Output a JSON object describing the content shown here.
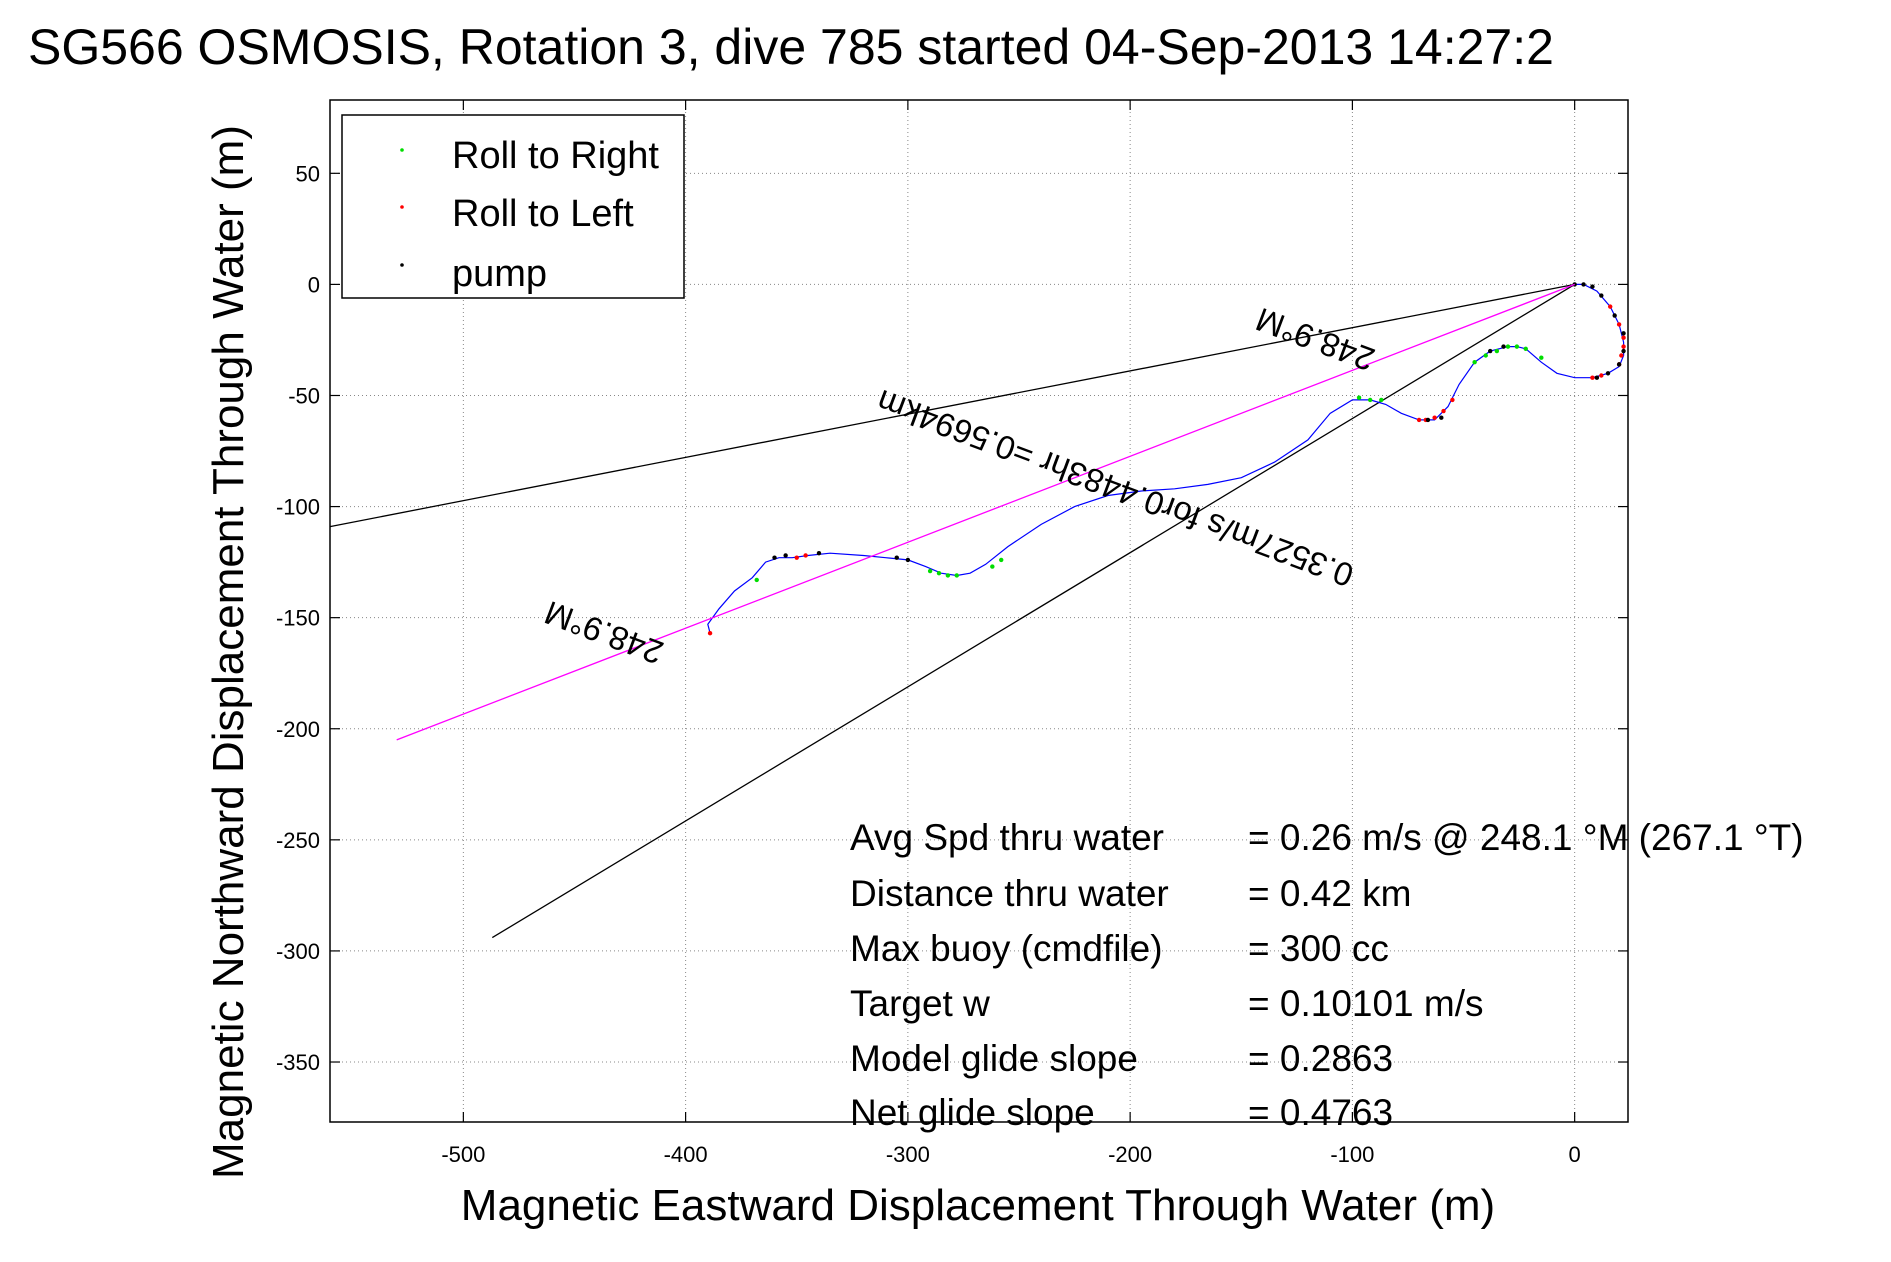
{
  "chart_data": {
    "type": "line",
    "title": "SG566 OSMOSIS, Rotation 3, dive 785 started 04-Sep-2013 14:27:2",
    "xlabel": "Magnetic Eastward Displacement Through Water (m)",
    "ylabel": "Magnetic Northward Displacement Through Water (m)",
    "xlim": [
      -560,
      24
    ],
    "ylim": [
      -377,
      83
    ],
    "x_ticks": [
      -500,
      -400,
      -300,
      -200,
      -100,
      0
    ],
    "x_tick_labels": [
      "-500",
      "-400",
      "-300",
      "-200",
      "-100",
      "0"
    ],
    "y_ticks": [
      50,
      0,
      -50,
      -100,
      -150,
      -200,
      -250,
      -300,
      -350
    ],
    "y_tick_labels": [
      "50",
      "0",
      "-50",
      "-100",
      "-150",
      "-200",
      "-250",
      "-300",
      "-350"
    ],
    "grid": true,
    "legend_position": "top-left",
    "legend": [
      {
        "label": "Roll to Right",
        "color": "#00dd00"
      },
      {
        "label": "Roll to Left",
        "color": "#ff0000"
      },
      {
        "label": "pump",
        "color": "#000000"
      }
    ],
    "series": [
      {
        "kind": "track",
        "color": "#0000ff",
        "x": [
          0,
          4,
          10,
          16,
          20,
          22,
          22,
          20,
          15,
          8,
          0,
          -8,
          -15,
          -22,
          -26,
          -30,
          -38,
          -45,
          -52,
          -57,
          -63,
          -70,
          -78,
          -85,
          -92,
          -100,
          -110,
          -120,
          -135,
          -150,
          -165,
          -180,
          -195,
          -210,
          -225,
          -240,
          -255,
          -265,
          -272,
          -278,
          -285,
          -292,
          -300,
          -310,
          -320,
          -335,
          -345,
          -352,
          -358,
          -364,
          -370,
          -378,
          -385,
          -390,
          -389
        ],
        "y": [
          0,
          0,
          -3,
          -10,
          -18,
          -26,
          -32,
          -37,
          -40,
          -42,
          -42,
          -40,
          -35,
          -29,
          -28,
          -28,
          -30,
          -35,
          -45,
          -55,
          -61,
          -61,
          -58,
          -54,
          -52,
          -52,
          -58,
          -70,
          -80,
          -87,
          -90,
          -92,
          -93,
          -95,
          -100,
          -108,
          -118,
          -126,
          -130,
          -131,
          -130,
          -127,
          -124,
          -123,
          -122,
          -121,
          -122,
          -123,
          -123,
          -125,
          -132,
          -138,
          -146,
          -153,
          -157
        ]
      },
      {
        "kind": "roll-right-points",
        "color": "#00dd00",
        "x": [
          -45,
          -40,
          -35,
          -30,
          -26,
          -22,
          -15,
          -97,
          -92,
          -87,
          -278,
          -282,
          -286,
          -290,
          -262,
          -258,
          -368
        ],
        "y": [
          -35,
          -32,
          -30,
          -28,
          -28,
          -29,
          -33,
          -51,
          -52,
          -52,
          -131,
          -131,
          -130,
          -129,
          -127,
          -124,
          -133
        ]
      },
      {
        "kind": "roll-left-points",
        "color": "#ff0000",
        "x": [
          16,
          20,
          22,
          22,
          21,
          20,
          12,
          8,
          -55,
          -59,
          -63,
          -67,
          -70,
          -346,
          -350,
          -389
        ],
        "y": [
          -10,
          -18,
          -24,
          -28,
          -32,
          -36,
          -41,
          -42,
          -52,
          -57,
          -60,
          -61,
          -61,
          -122,
          -123,
          -157
        ]
      },
      {
        "kind": "pump-points",
        "color": "#000000",
        "x": [
          0,
          4,
          8,
          12,
          18,
          22,
          22,
          20,
          15,
          10,
          -32,
          -38,
          -60,
          -66,
          -300,
          -305,
          -340,
          -355,
          -360
        ],
        "y": [
          0,
          0,
          -1,
          -5,
          -14,
          -22,
          -30,
          -36,
          -40,
          -42,
          -28,
          -30,
          -60,
          -61,
          -124,
          -123,
          -121,
          -122,
          -123
        ]
      },
      {
        "kind": "heading-line",
        "color": "#ff00ff",
        "x": [
          0,
          -530
        ],
        "y": [
          0,
          -205
        ]
      },
      {
        "kind": "bound-line-upper",
        "color": "#000000",
        "x": [
          0,
          -560
        ],
        "y": [
          0,
          -109
        ]
      },
      {
        "kind": "bound-line-lower",
        "color": "#000000",
        "x": [
          0,
          -487
        ],
        "y": [
          0,
          -294
        ]
      }
    ],
    "annotations": [
      {
        "text": "248.9°M",
        "x": -115,
        "y": -20,
        "angle": 200.5
      },
      {
        "text": "0.3527m/s for0.4483hr =0.5694km",
        "x": -205,
        "y": -87,
        "angle": 200.5
      },
      {
        "text": "248.9°M",
        "x": -435,
        "y": -152,
        "angle": 200.5
      }
    ],
    "stats": [
      {
        "label": "Avg Spd thru water",
        "value": "=  0.26 m/s @ 248.1 °M (267.1 °T)"
      },
      {
        "label": "Distance thru water",
        "value": "=  0.42 km"
      },
      {
        "label": "Max buoy (cmdfile)",
        "value": "= 300 cc"
      },
      {
        "label": "Target w",
        "value": "= 0.10101 m/s"
      },
      {
        "label": "Model glide slope",
        "value": "= 0.2863"
      },
      {
        "label": "Net glide slope",
        "value": "= 0.4763"
      }
    ]
  }
}
